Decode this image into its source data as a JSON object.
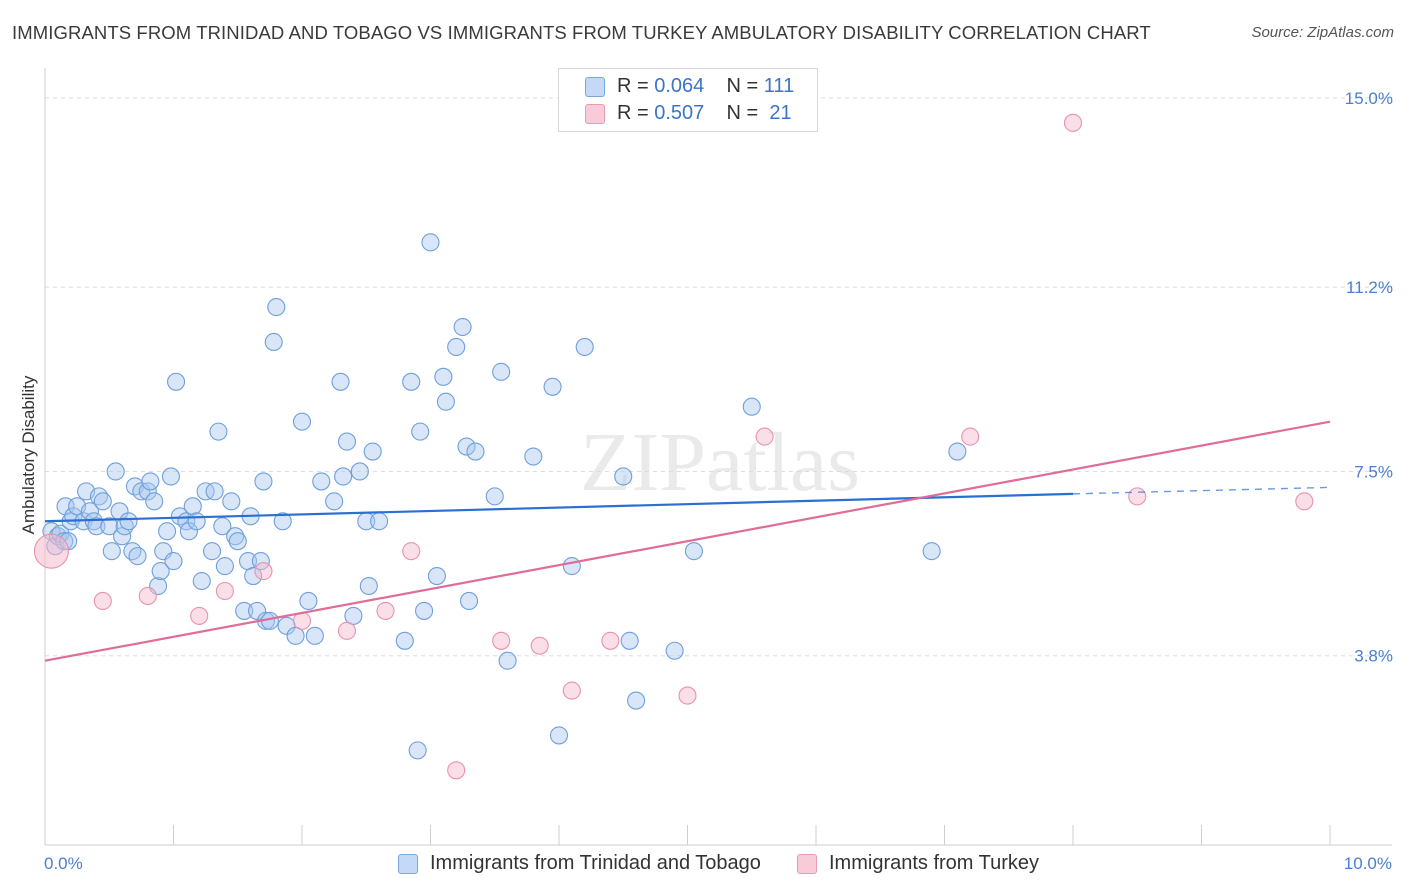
{
  "title": "IMMIGRANTS FROM TRINIDAD AND TOBAGO VS IMMIGRANTS FROM TURKEY AMBULATORY DISABILITY CORRELATION CHART",
  "source": "Source: ZipAtlas.com",
  "watermark": "ZIPatlas",
  "legend": {
    "series1": {
      "r_label": "R =",
      "r_value": "0.064",
      "n_label": "N =",
      "n_value": "111"
    },
    "series2": {
      "r_label": "R =",
      "r_value": "0.507",
      "n_label": "N =",
      "n_value": "21"
    }
  },
  "colors": {
    "blue_fill": "#a9c8f0",
    "blue_stroke": "#6f9fdc",
    "blue_line": "#2a6fd1",
    "pink_fill": "#f6b9cb",
    "pink_stroke": "#e892ad",
    "pink_line": "#e06c97",
    "tick_text": "#4a7fcf",
    "grid": "#dddddd"
  },
  "chart_data": {
    "type": "scatter",
    "title": "IMMIGRANTS FROM TRINIDAD AND TOBAGO VS IMMIGRANTS FROM TURKEY AMBULATORY DISABILITY CORRELATION CHART",
    "xlabel": "",
    "ylabel": "Ambulatory Disability",
    "xlim": [
      0,
      10
    ],
    "ylim": [
      0,
      15.4
    ],
    "x_tick_labels": [
      "0.0%",
      "10.0%"
    ],
    "y_ticks": [
      3.8,
      7.5,
      11.2,
      15.0
    ],
    "y_tick_labels": [
      "3.8%",
      "7.5%",
      "11.2%",
      "15.0%"
    ],
    "legend_position": "top-center",
    "grid": true,
    "series": [
      {
        "name": "Immigrants from Trinidad and Tobago",
        "color": "#a9c8f0",
        "trend": {
          "x": [
            0,
            8
          ],
          "y": [
            6.5,
            7.05
          ],
          "dashed_to": [
            10,
            7.18
          ]
        },
        "points": [
          [
            0.05,
            6.3
          ],
          [
            0.08,
            6.0
          ],
          [
            0.1,
            6.2
          ],
          [
            0.12,
            6.25
          ],
          [
            0.15,
            6.1
          ],
          [
            0.16,
            6.8
          ],
          [
            0.18,
            6.1
          ],
          [
            0.2,
            6.5
          ],
          [
            0.22,
            6.6
          ],
          [
            0.25,
            6.8
          ],
          [
            0.3,
            6.5
          ],
          [
            0.32,
            7.1
          ],
          [
            0.35,
            6.7
          ],
          [
            0.38,
            6.5
          ],
          [
            0.4,
            6.4
          ],
          [
            0.42,
            7.0
          ],
          [
            0.45,
            6.9
          ],
          [
            0.5,
            6.4
          ],
          [
            0.52,
            5.9
          ],
          [
            0.55,
            7.5
          ],
          [
            0.58,
            6.7
          ],
          [
            0.6,
            6.2
          ],
          [
            0.62,
            6.4
          ],
          [
            0.65,
            6.5
          ],
          [
            0.68,
            5.9
          ],
          [
            0.7,
            7.2
          ],
          [
            0.72,
            5.8
          ],
          [
            0.75,
            7.1
          ],
          [
            0.8,
            7.1
          ],
          [
            0.82,
            7.3
          ],
          [
            0.85,
            6.9
          ],
          [
            0.88,
            5.2
          ],
          [
            0.9,
            5.5
          ],
          [
            0.92,
            5.9
          ],
          [
            0.95,
            6.3
          ],
          [
            0.98,
            7.4
          ],
          [
            1.0,
            5.7
          ],
          [
            1.02,
            9.3
          ],
          [
            1.05,
            6.6
          ],
          [
            1.1,
            6.5
          ],
          [
            1.12,
            6.3
          ],
          [
            1.15,
            6.8
          ],
          [
            1.18,
            6.5
          ],
          [
            1.22,
            5.3
          ],
          [
            1.25,
            7.1
          ],
          [
            1.3,
            5.9
          ],
          [
            1.32,
            7.1
          ],
          [
            1.35,
            8.3
          ],
          [
            1.38,
            6.4
          ],
          [
            1.4,
            5.6
          ],
          [
            1.45,
            6.9
          ],
          [
            1.48,
            6.2
          ],
          [
            1.5,
            6.1
          ],
          [
            1.55,
            4.7
          ],
          [
            1.58,
            5.7
          ],
          [
            1.6,
            6.6
          ],
          [
            1.62,
            5.4
          ],
          [
            1.65,
            4.7
          ],
          [
            1.68,
            5.7
          ],
          [
            1.7,
            7.3
          ],
          [
            1.72,
            4.5
          ],
          [
            1.75,
            4.5
          ],
          [
            1.78,
            10.1
          ],
          [
            1.8,
            10.8
          ],
          [
            1.85,
            6.5
          ],
          [
            1.88,
            4.4
          ],
          [
            1.95,
            4.2
          ],
          [
            2.0,
            8.5
          ],
          [
            2.05,
            4.9
          ],
          [
            2.1,
            4.2
          ],
          [
            2.15,
            7.3
          ],
          [
            2.25,
            6.9
          ],
          [
            2.3,
            9.3
          ],
          [
            2.32,
            7.4
          ],
          [
            2.35,
            8.1
          ],
          [
            2.4,
            4.6
          ],
          [
            2.45,
            7.5
          ],
          [
            2.5,
            6.5
          ],
          [
            2.52,
            5.2
          ],
          [
            2.55,
            7.9
          ],
          [
            2.6,
            6.5
          ],
          [
            2.8,
            4.1
          ],
          [
            2.85,
            9.3
          ],
          [
            2.9,
            1.9
          ],
          [
            2.92,
            8.3
          ],
          [
            2.95,
            4.7
          ],
          [
            3.0,
            12.1
          ],
          [
            3.05,
            5.4
          ],
          [
            3.1,
            9.4
          ],
          [
            3.12,
            8.9
          ],
          [
            3.2,
            10.0
          ],
          [
            3.25,
            10.4
          ],
          [
            3.28,
            8.0
          ],
          [
            3.3,
            4.9
          ],
          [
            3.35,
            7.9
          ],
          [
            3.5,
            7.0
          ],
          [
            3.55,
            9.5
          ],
          [
            3.6,
            3.7
          ],
          [
            3.8,
            7.8
          ],
          [
            3.95,
            9.2
          ],
          [
            4.0,
            2.2
          ],
          [
            4.1,
            5.6
          ],
          [
            4.2,
            10.0
          ],
          [
            4.5,
            7.4
          ],
          [
            4.55,
            4.1
          ],
          [
            4.6,
            2.9
          ],
          [
            4.9,
            3.9
          ],
          [
            5.05,
            5.9
          ],
          [
            5.5,
            8.8
          ],
          [
            6.9,
            5.9
          ],
          [
            7.1,
            7.9
          ]
        ]
      },
      {
        "name": "Immigrants from Turkey",
        "color": "#f6b9cb",
        "trend": {
          "x": [
            0,
            10
          ],
          "y": [
            3.7,
            8.5
          ]
        },
        "points": [
          [
            0.05,
            5.9
          ],
          [
            0.45,
            4.9
          ],
          [
            0.8,
            5.0
          ],
          [
            1.2,
            4.6
          ],
          [
            1.4,
            5.1
          ],
          [
            1.7,
            5.5
          ],
          [
            2.0,
            4.5
          ],
          [
            2.35,
            4.3
          ],
          [
            2.65,
            4.7
          ],
          [
            2.85,
            5.9
          ],
          [
            3.2,
            1.5
          ],
          [
            3.55,
            4.1
          ],
          [
            3.85,
            4.0
          ],
          [
            4.1,
            3.1
          ],
          [
            4.4,
            4.1
          ],
          [
            5.0,
            3.0
          ],
          [
            5.6,
            8.2
          ],
          [
            7.2,
            8.2
          ],
          [
            8.0,
            14.5
          ],
          [
            8.5,
            7.0
          ],
          [
            9.8,
            6.9
          ]
        ]
      }
    ]
  },
  "bottom_legend": {
    "item1": "Immigrants from Trinidad and Tobago",
    "item2": "Immigrants from Turkey"
  }
}
